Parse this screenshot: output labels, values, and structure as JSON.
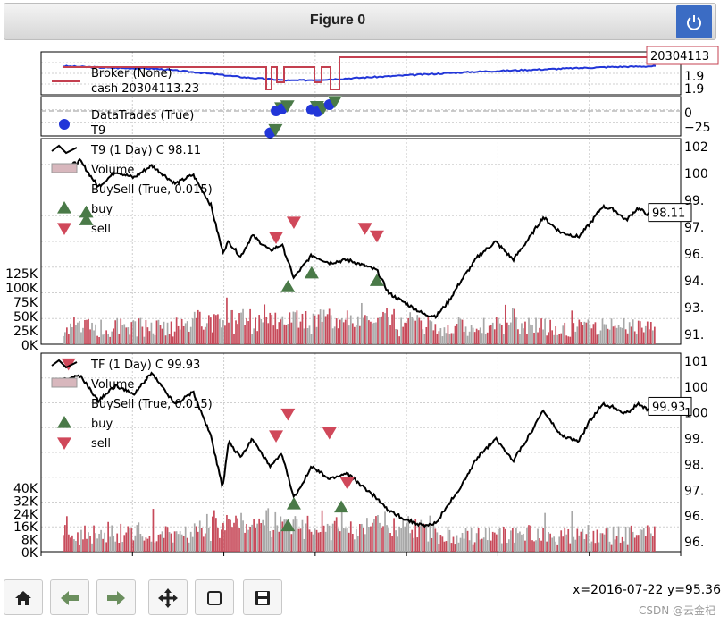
{
  "window": {
    "title": "Figure 0"
  },
  "colors": {
    "broker": "#2236d8",
    "cash": "#c44050",
    "price": "#000000",
    "volume_up": "#c74a5a",
    "volume_down": "#a8a8a8",
    "buy": "#4a7a48",
    "sell": "#d0485a",
    "trade": "#2236d8"
  },
  "icons": {
    "power": "power-icon",
    "home": "home-icon",
    "back": "arrow-left-icon",
    "forward": "arrow-right-icon",
    "pan": "move-icon",
    "zoom": "zoom-rect-icon",
    "save": "save-icon"
  },
  "status": {
    "coords": "x=2016-07-22 y=95.36",
    "watermark": "CSDN @云金杞"
  },
  "chart_data": [
    {
      "type": "line",
      "panel": "broker",
      "legend": [
        "Broker (None)",
        "cash 20304113.23"
      ],
      "last_value_label": "20304113",
      "ytick_labels": [
        "1.9",
        "1.9"
      ],
      "series": [
        {
          "name": "Broker (None)",
          "values": [
            1.0,
            0.9,
            0.85,
            0.6,
            0.3,
            0.1,
            0.2,
            0.35,
            0.5,
            0.65,
            0.75,
            0.85,
            0.95,
            1.0
          ]
        },
        {
          "name": "cash",
          "values": [
            1,
            1,
            1,
            1,
            0,
            1,
            0,
            1,
            0,
            1,
            1,
            1,
            1,
            1
          ]
        }
      ]
    },
    {
      "type": "scatter",
      "panel": "trades",
      "legend": [
        "DataTrades (True)",
        "T9"
      ],
      "yticks": [
        "0",
        "−25"
      ],
      "points": [
        [
          0.35,
          -35
        ],
        [
          0.36,
          0
        ],
        [
          0.37,
          3
        ],
        [
          0.42,
          2
        ],
        [
          0.43,
          -1
        ],
        [
          0.45,
          10
        ]
      ]
    },
    {
      "type": "line",
      "panel": "T9",
      "legend": [
        "T9 (1 Day) C 98.11",
        "Volume",
        "BuySell (True, 0.015)",
        "buy",
        "sell"
      ],
      "last_value": "98.11",
      "yticks": [
        "102",
        "100",
        "99.",
        "97.",
        "96.",
        "94.",
        "93.",
        "91."
      ],
      "volume_ticks": [
        "125K",
        "100K",
        "75K",
        "50K",
        "25K",
        "0K"
      ],
      "ylim": [
        90.5,
        102.5
      ],
      "anchors": [
        [
          0,
          101.0
        ],
        [
          0.03,
          101.5
        ],
        [
          0.06,
          99.8
        ],
        [
          0.09,
          100.8
        ],
        [
          0.12,
          100.4
        ],
        [
          0.15,
          101.2
        ],
        [
          0.19,
          100.0
        ],
        [
          0.22,
          100.6
        ],
        [
          0.25,
          98.6
        ],
        [
          0.27,
          95.5
        ],
        [
          0.28,
          96.2
        ],
        [
          0.3,
          95.2
        ],
        [
          0.32,
          96.6
        ],
        [
          0.35,
          95.6
        ],
        [
          0.37,
          96.0
        ],
        [
          0.39,
          93.8
        ],
        [
          0.42,
          95.3
        ],
        [
          0.45,
          94.8
        ],
        [
          0.48,
          95.0
        ],
        [
          0.51,
          94.6
        ],
        [
          0.53,
          94.3
        ],
        [
          0.55,
          92.8
        ],
        [
          0.58,
          92.1
        ],
        [
          0.61,
          91.4
        ],
        [
          0.63,
          91.3
        ],
        [
          0.65,
          92.2
        ],
        [
          0.67,
          93.5
        ],
        [
          0.7,
          95.2
        ],
        [
          0.73,
          96.2
        ],
        [
          0.76,
          95.0
        ],
        [
          0.79,
          96.6
        ],
        [
          0.81,
          97.8
        ],
        [
          0.84,
          96.8
        ],
        [
          0.87,
          96.5
        ],
        [
          0.89,
          97.4
        ],
        [
          0.91,
          98.5
        ],
        [
          0.93,
          98.3
        ],
        [
          0.95,
          97.6
        ],
        [
          0.97,
          98.4
        ],
        [
          0.99,
          97.9
        ],
        [
          1.0,
          98.11
        ]
      ],
      "buy_markers": [
        [
          0.38,
          93.2
        ],
        [
          0.42,
          94.1
        ],
        [
          0.53,
          93.6
        ],
        [
          0.04,
          98.1
        ],
        [
          0.04,
          97.6
        ]
      ],
      "sell_markers": [
        [
          0.36,
          96.5
        ],
        [
          0.39,
          97.5
        ],
        [
          0.51,
          97.1
        ],
        [
          0.53,
          96.6
        ]
      ]
    },
    {
      "type": "line",
      "panel": "TF",
      "legend": [
        "TF (1 Day) C 99.93",
        "Volume",
        "BuySell (True, 0.015)",
        "buy",
        "sell"
      ],
      "last_value": "99.93",
      "yticks": [
        "101",
        "100",
        "100",
        "99.",
        "98.",
        "97.",
        "96.",
        "96."
      ],
      "volume_ticks": [
        "40K",
        "32K",
        "24K",
        "16K",
        "8K",
        "0K"
      ],
      "ylim": [
        95.8,
        101.4
      ],
      "anchors": [
        [
          0,
          100.8
        ],
        [
          0.03,
          100.9
        ],
        [
          0.06,
          100.1
        ],
        [
          0.09,
          100.6
        ],
        [
          0.12,
          100.3
        ],
        [
          0.15,
          101.0
        ],
        [
          0.19,
          100.0
        ],
        [
          0.22,
          100.4
        ],
        [
          0.25,
          99.0
        ],
        [
          0.27,
          97.3
        ],
        [
          0.28,
          98.8
        ],
        [
          0.3,
          98.3
        ],
        [
          0.32,
          98.9
        ],
        [
          0.35,
          98.0
        ],
        [
          0.37,
          98.4
        ],
        [
          0.39,
          97.0
        ],
        [
          0.42,
          98.0
        ],
        [
          0.45,
          97.6
        ],
        [
          0.48,
          97.8
        ],
        [
          0.51,
          97.3
        ],
        [
          0.53,
          97.0
        ],
        [
          0.55,
          96.6
        ],
        [
          0.58,
          96.3
        ],
        [
          0.61,
          96.1
        ],
        [
          0.63,
          96.2
        ],
        [
          0.65,
          96.8
        ],
        [
          0.67,
          97.3
        ],
        [
          0.7,
          98.3
        ],
        [
          0.73,
          98.9
        ],
        [
          0.76,
          98.2
        ],
        [
          0.79,
          99.1
        ],
        [
          0.81,
          99.8
        ],
        [
          0.84,
          99.0
        ],
        [
          0.87,
          98.8
        ],
        [
          0.89,
          99.5
        ],
        [
          0.91,
          100.0
        ],
        [
          0.93,
          99.9
        ],
        [
          0.95,
          99.7
        ],
        [
          0.97,
          100.0
        ],
        [
          0.99,
          99.8
        ],
        [
          1.0,
          99.93
        ]
      ],
      "buy_markers": [
        [
          0.38,
          96.1
        ],
        [
          0.39,
          96.8
        ],
        [
          0.47,
          96.7
        ]
      ],
      "sell_markers": [
        [
          0.01,
          101.3
        ],
        [
          0.36,
          99.0
        ],
        [
          0.38,
          99.7
        ],
        [
          0.45,
          99.1
        ],
        [
          0.48,
          97.5
        ]
      ]
    }
  ]
}
